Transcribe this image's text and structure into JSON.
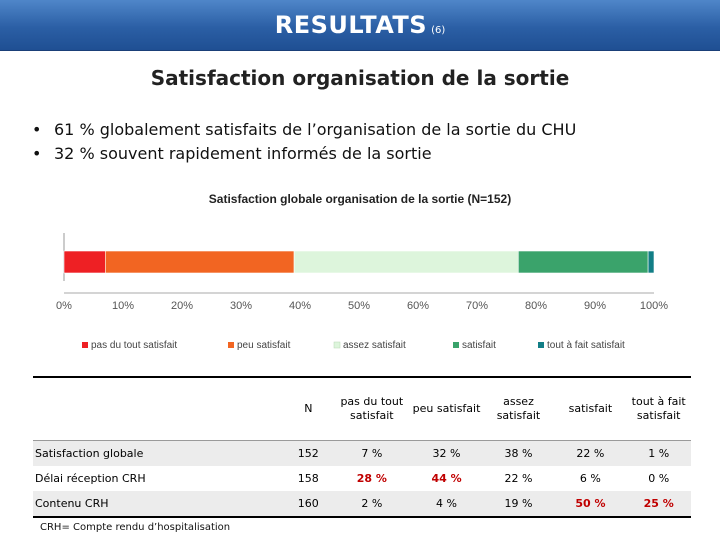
{
  "header": {
    "title": "RESULTATS",
    "num": "(6)"
  },
  "subtitle": "Satisfaction organisation de la sortie",
  "bullets": [
    "61 % globalement satisfaits de l’organisation de la sortie du CHU",
    "32 % souvent rapidement informés de la sortie"
  ],
  "chart_data": {
    "type": "bar",
    "orientation": "horizontal",
    "stacked": true,
    "title": "Satisfaction globale organisation de la sortie (N=152)",
    "xlim": [
      0,
      100
    ],
    "x_ticks": [
      "0%",
      "10%",
      "20%",
      "30%",
      "40%",
      "50%",
      "60%",
      "70%",
      "80%",
      "90%",
      "100%"
    ],
    "series": [
      {
        "name": "pas du tout satisfait",
        "value": 7,
        "color": "#ee2024"
      },
      {
        "name": "peu satisfait",
        "value": 32,
        "color": "#f26522"
      },
      {
        "name": "assez satisfait",
        "value": 38,
        "color": "#ddf5dc"
      },
      {
        "name": "satisfait",
        "value": 22,
        "color": "#3aa36b"
      },
      {
        "name": "tout à fait satisfait",
        "value": 1,
        "color": "#127e86"
      }
    ],
    "legend_position": "bottom",
    "grid": false
  },
  "table": {
    "headers": [
      "",
      "N",
      "pas du tout satisfait",
      "peu satisfait",
      "assez satisfait",
      "satisfait",
      "tout à fait satisfait"
    ],
    "rows": [
      {
        "label": "Satisfaction globale",
        "cells": [
          "152",
          "7 %",
          "32 %",
          "38 %",
          "22 %",
          "1 %"
        ],
        "highlight": []
      },
      {
        "label": "Délai réception CRH",
        "cells": [
          "158",
          "28 %",
          "44 %",
          "22 %",
          "6 %",
          "0 %"
        ],
        "highlight": [
          1,
          2
        ]
      },
      {
        "label": "Contenu CRH",
        "cells": [
          "160",
          "2 %",
          "4 %",
          "19 %",
          "50 %",
          "25 %"
        ],
        "highlight": [
          4,
          5
        ]
      }
    ]
  },
  "footnote": "CRH= Compte rendu d’hospitalisation",
  "colors": {
    "header_bg": "#2b5fa5",
    "highlight": "#c00000",
    "row_shade": "#ececec"
  }
}
